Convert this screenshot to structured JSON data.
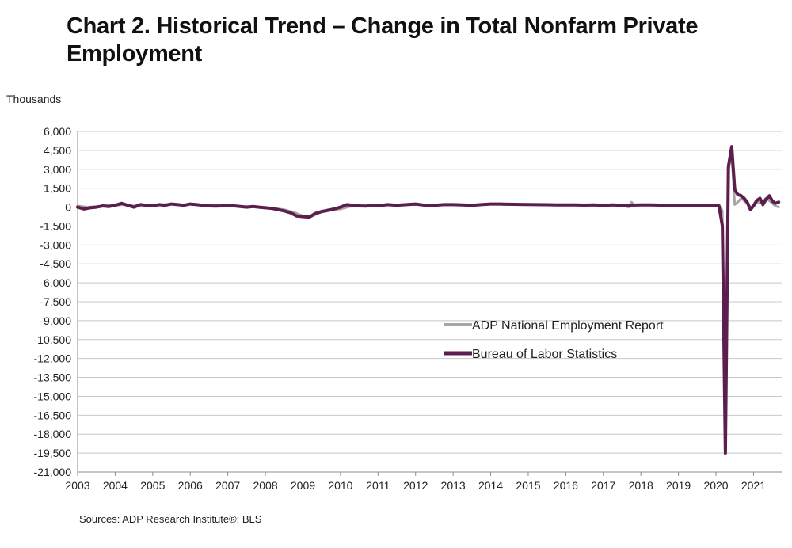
{
  "title_line1": "Chart 2. Historical Trend – Change in Total Nonfarm Private",
  "title_line2": "Employment",
  "source": "Sources: ADP Research Institute®; BLS",
  "chart_data": {
    "type": "line",
    "title": "Chart 2. Historical Trend – Change in Total Nonfarm Private Employment",
    "ylabel": "Thousands",
    "xlabel": "",
    "ylim": [
      -21000,
      6000
    ],
    "yticks": [
      6000,
      4500,
      3000,
      1500,
      0,
      -1500,
      -3000,
      -4500,
      -6000,
      -7500,
      -9000,
      -10500,
      -12000,
      -13500,
      -15000,
      -16500,
      -18000,
      -19500,
      -21000
    ],
    "ytick_labels": [
      "6,000",
      "4,500",
      "3,000",
      "1,500",
      "0",
      "-1,500",
      "-3,000",
      "-4,500",
      "-6,000",
      "-7,500",
      "-9,000",
      "-10,500",
      "-12,000",
      "-13,500",
      "-15,000",
      "-16,500",
      "-18,000",
      "-19,500",
      "-21,000"
    ],
    "xlim": [
      2003.0,
      2021.75
    ],
    "xticks": [
      "2003",
      "2004",
      "2005",
      "2006",
      "2007",
      "2008",
      "2009",
      "2010",
      "2011",
      "2012",
      "2013",
      "2014",
      "2015",
      "2016",
      "2017",
      "2018",
      "2019",
      "2020",
      "2021"
    ],
    "grid": "horizontal",
    "legend_position": "lower-right",
    "series": [
      {
        "name": "ADP National Employment Report",
        "color": "#a6a6a6",
        "x": [
          2003.0,
          2003.25,
          2003.5,
          2003.75,
          2004.0,
          2004.25,
          2004.5,
          2004.75,
          2005.0,
          2005.25,
          2005.5,
          2005.75,
          2006.0,
          2006.25,
          2006.5,
          2006.75,
          2007.0,
          2007.25,
          2007.5,
          2007.75,
          2008.0,
          2008.25,
          2008.5,
          2008.75,
          2009.0,
          2009.25,
          2009.5,
          2009.75,
          2010.0,
          2010.25,
          2010.5,
          2010.75,
          2011.0,
          2011.25,
          2011.5,
          2011.75,
          2012.0,
          2012.25,
          2012.5,
          2012.75,
          2013.0,
          2013.25,
          2013.5,
          2013.75,
          2014.0,
          2014.25,
          2014.5,
          2014.75,
          2015.0,
          2015.25,
          2015.5,
          2015.75,
          2016.0,
          2016.25,
          2016.5,
          2016.75,
          2017.0,
          2017.25,
          2017.5,
          2017.67,
          2017.75,
          2017.83,
          2018.0,
          2018.25,
          2018.5,
          2018.75,
          2019.0,
          2019.25,
          2019.5,
          2019.75,
          2020.0,
          2020.08,
          2020.17,
          2020.25,
          2020.33,
          2020.42,
          2020.5,
          2020.58,
          2020.67,
          2020.75,
          2020.83,
          2020.92,
          2021.0,
          2021.08,
          2021.17,
          2021.25,
          2021.33,
          2021.42,
          2021.5,
          2021.58,
          2021.67
        ],
        "values": [
          100,
          0,
          50,
          120,
          150,
          200,
          100,
          180,
          150,
          200,
          250,
          180,
          250,
          200,
          150,
          120,
          100,
          80,
          50,
          20,
          -50,
          -100,
          -200,
          -400,
          -700,
          -700,
          -400,
          -250,
          -150,
          50,
          80,
          100,
          150,
          200,
          150,
          180,
          200,
          180,
          150,
          170,
          200,
          180,
          160,
          200,
          250,
          220,
          200,
          230,
          210,
          200,
          190,
          180,
          170,
          180,
          160,
          180,
          200,
          180,
          150,
          0,
          400,
          150,
          200,
          180,
          170,
          160,
          150,
          120,
          130,
          140,
          150,
          180,
          -300,
          -19500,
          3000,
          4200,
          200,
          400,
          700,
          500,
          300,
          -100,
          200,
          300,
          400,
          500,
          700,
          500,
          300,
          100,
          0
        ]
      },
      {
        "name": "Bureau of Labor Statistics",
        "color": "#5c1e4e",
        "x": [
          2003.0,
          2003.17,
          2003.33,
          2003.5,
          2003.67,
          2003.83,
          2004.0,
          2004.17,
          2004.33,
          2004.5,
          2004.67,
          2004.83,
          2005.0,
          2005.17,
          2005.33,
          2005.5,
          2005.67,
          2005.83,
          2006.0,
          2006.17,
          2006.33,
          2006.5,
          2006.67,
          2006.83,
          2007.0,
          2007.17,
          2007.33,
          2007.5,
          2007.67,
          2007.83,
          2008.0,
          2008.17,
          2008.33,
          2008.5,
          2008.67,
          2008.83,
          2009.0,
          2009.17,
          2009.33,
          2009.5,
          2009.67,
          2009.83,
          2010.0,
          2010.17,
          2010.33,
          2010.5,
          2010.67,
          2010.83,
          2011.0,
          2011.25,
          2011.5,
          2011.75,
          2012.0,
          2012.25,
          2012.5,
          2012.75,
          2013.0,
          2013.25,
          2013.5,
          2013.75,
          2014.0,
          2014.25,
          2014.5,
          2014.75,
          2015.0,
          2015.25,
          2015.5,
          2015.75,
          2016.0,
          2016.25,
          2016.5,
          2016.75,
          2017.0,
          2017.25,
          2017.5,
          2017.75,
          2018.0,
          2018.25,
          2018.5,
          2018.75,
          2019.0,
          2019.25,
          2019.5,
          2019.75,
          2020.0,
          2020.08,
          2020.17,
          2020.25,
          2020.33,
          2020.42,
          2020.5,
          2020.58,
          2020.67,
          2020.75,
          2020.83,
          2020.92,
          2021.0,
          2021.08,
          2021.17,
          2021.25,
          2021.33,
          2021.42,
          2021.5,
          2021.58,
          2021.67
        ],
        "values": [
          0,
          -150,
          -50,
          0,
          100,
          50,
          150,
          300,
          150,
          0,
          200,
          150,
          100,
          200,
          150,
          250,
          200,
          150,
          250,
          200,
          150,
          100,
          80,
          100,
          150,
          100,
          50,
          0,
          50,
          0,
          -50,
          -100,
          -200,
          -300,
          -450,
          -700,
          -750,
          -800,
          -500,
          -350,
          -250,
          -150,
          0,
          200,
          150,
          100,
          80,
          150,
          100,
          200,
          150,
          200,
          250,
          150,
          150,
          200,
          200,
          180,
          150,
          200,
          250,
          250,
          230,
          220,
          210,
          200,
          190,
          180,
          170,
          180,
          160,
          180,
          150,
          170,
          150,
          160,
          170,
          180,
          160,
          150,
          140,
          150,
          160,
          150,
          150,
          100,
          -1500,
          -19500,
          3200,
          4800,
          1400,
          1000,
          900,
          700,
          400,
          -200,
          100,
          500,
          700,
          200,
          600,
          900,
          500,
          300,
          400
        ]
      }
    ]
  }
}
